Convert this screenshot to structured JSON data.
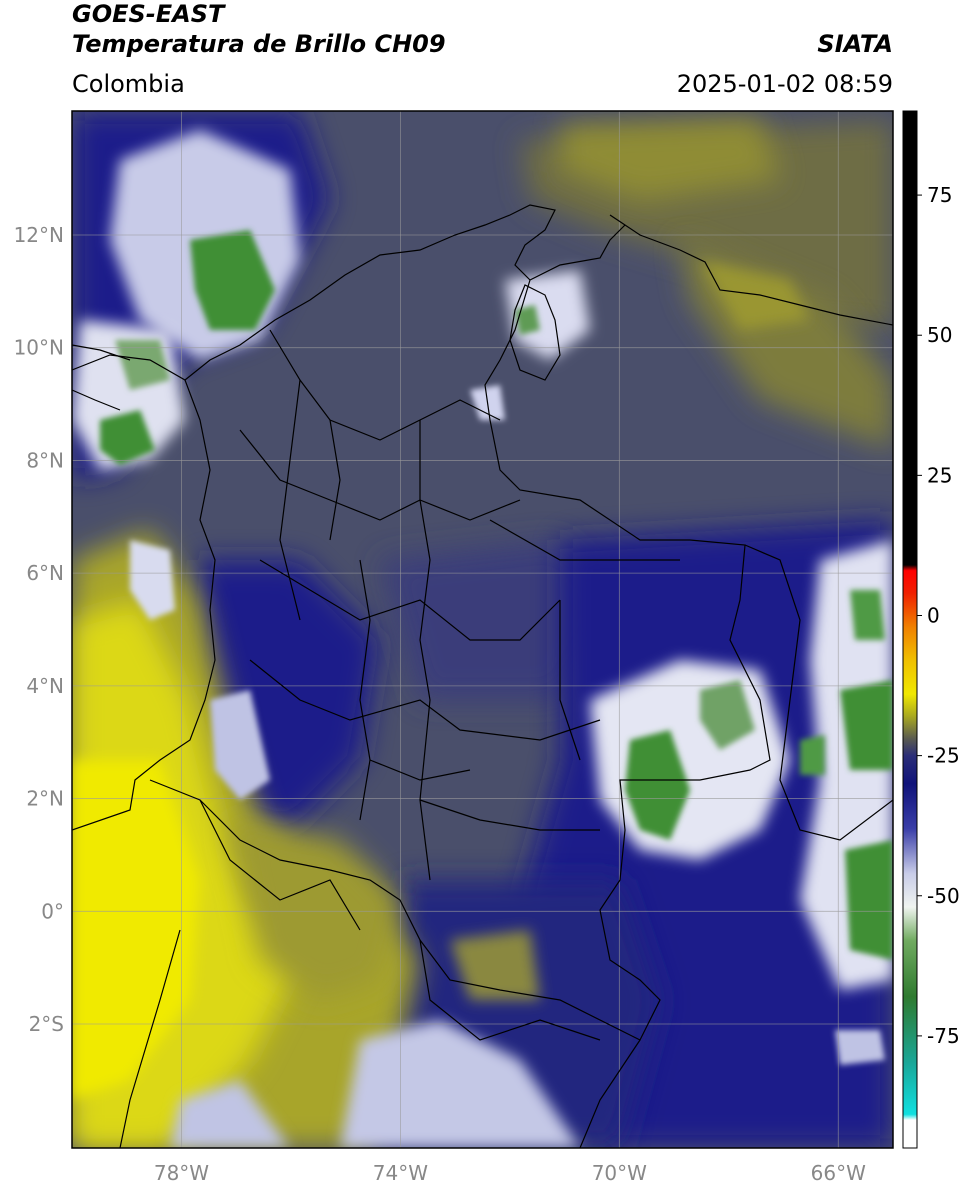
{
  "header": {
    "line1": "GOES-EAST",
    "line2": "Temperatura de Brillo CH09",
    "organization": "SIATA",
    "region": "Colombia",
    "datetime": "2025-01-02 08:59"
  },
  "map": {
    "projection": "PlateCarree",
    "extent": {
      "lon_min": -80,
      "lon_max": -65,
      "lat_min": -4.2,
      "lat_max": 14.2
    },
    "lon_ticks": [
      {
        "value": -78,
        "label": "78°W"
      },
      {
        "value": -74,
        "label": "74°W"
      },
      {
        "value": -70,
        "label": "70°W"
      },
      {
        "value": -66,
        "label": "66°W"
      }
    ],
    "lat_ticks": [
      {
        "value": 12,
        "label": "12°N"
      },
      {
        "value": 10,
        "label": "10°N"
      },
      {
        "value": 8,
        "label": "8°N"
      },
      {
        "value": 6,
        "label": "6°N"
      },
      {
        "value": 4,
        "label": "4°N"
      },
      {
        "value": 2,
        "label": "2°N"
      },
      {
        "value": 0,
        "label": "0°"
      },
      {
        "value": -2,
        "label": "2°S"
      }
    ],
    "gridlines": true,
    "colors": {
      "background": "#4a4f6b",
      "deep_blue": "#1a1f8a",
      "olive": "#8a8a2a",
      "yellow": "#e3e010",
      "white_cloud": "#f2f4f8",
      "green_core": "#3f8f36",
      "border": "#000000"
    }
  },
  "colorbar": {
    "range": [
      -95,
      90
    ],
    "ticks": [
      {
        "value": 75,
        "label": "75"
      },
      {
        "value": 50,
        "label": "50"
      },
      {
        "value": 25,
        "label": "25"
      },
      {
        "value": 0,
        "label": "0"
      },
      {
        "value": -25,
        "label": "-25"
      },
      {
        "value": -50,
        "label": "-50"
      },
      {
        "value": -75,
        "label": "-75"
      }
    ],
    "stops": [
      {
        "value": -95,
        "color": "#ffffff"
      },
      {
        "value": -90,
        "color": "#ffffff"
      },
      {
        "value": -89,
        "color": "#10e0e0"
      },
      {
        "value": -80,
        "color": "#1aa89a"
      },
      {
        "value": -68,
        "color": "#2f7a2f"
      },
      {
        "value": -58,
        "color": "#70ab60"
      },
      {
        "value": -52,
        "color": "#f0f4f0"
      },
      {
        "value": -46,
        "color": "#c8cce8"
      },
      {
        "value": -38,
        "color": "#3a3ea8"
      },
      {
        "value": -30,
        "color": "#10137a"
      },
      {
        "value": -25,
        "color": "#2b2e78"
      },
      {
        "value": -22,
        "color": "#5a5b50"
      },
      {
        "value": -18,
        "color": "#a8a820"
      },
      {
        "value": -14,
        "color": "#f0e800"
      },
      {
        "value": -8,
        "color": "#f0c000"
      },
      {
        "value": -2,
        "color": "#f08000"
      },
      {
        "value": 4,
        "color": "#f02000"
      },
      {
        "value": 8,
        "color": "#ff0000"
      },
      {
        "value": 9,
        "color": "#000000"
      },
      {
        "value": 90,
        "color": "#000000"
      }
    ]
  }
}
